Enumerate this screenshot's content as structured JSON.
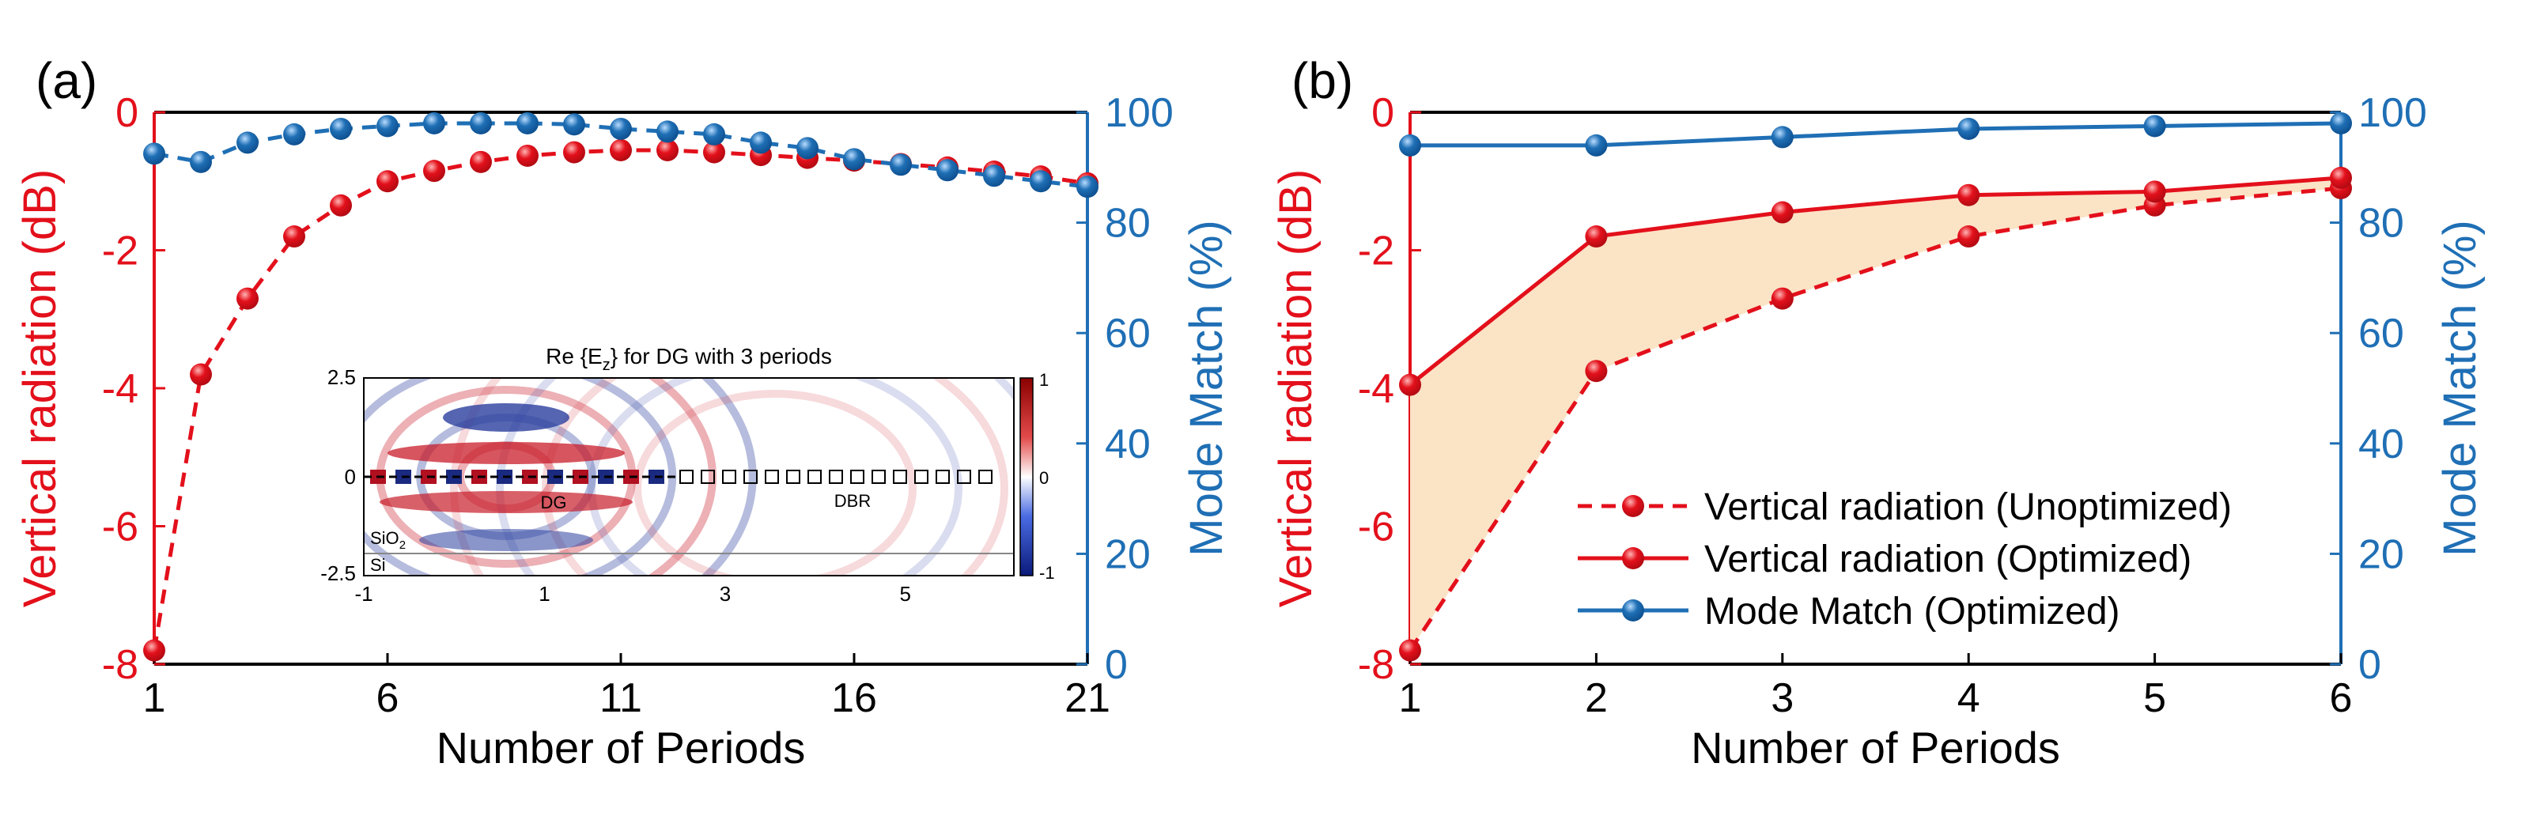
{
  "colors": {
    "red": "#e3101b",
    "blue": "#1f6fb5",
    "dark_red_ball": "#b00a12",
    "dark_blue_ball": "#0d4f8f",
    "fill": "#fbe3c6",
    "axis": "#000000"
  },
  "chart_data": [
    {
      "panel_label": "(a)",
      "type": "line",
      "xlabel": "Number of Periods",
      "ylabel_left": "Vertical radiation (dB)",
      "ylabel_right": "Mode Match (%)",
      "xlim": [
        1,
        21
      ],
      "ylim_left": [
        -8,
        0
      ],
      "ylim_right": [
        0,
        100
      ],
      "xticks": [
        1,
        6,
        11,
        16,
        21
      ],
      "yticks_left": [
        0,
        -2,
        -4,
        -6,
        -8
      ],
      "yticks_right": [
        100,
        80,
        60,
        40,
        20,
        0
      ],
      "x": [
        1,
        2,
        3,
        4,
        5,
        6,
        7,
        8,
        9,
        10,
        11,
        12,
        13,
        14,
        15,
        16,
        17,
        18,
        19,
        20,
        21
      ],
      "series": [
        {
          "name": "Vertical radiation",
          "axis": "left",
          "color": "red",
          "style": "dashed",
          "values": [
            -7.8,
            -3.8,
            -2.7,
            -1.8,
            -1.35,
            -1.0,
            -0.85,
            -0.72,
            -0.63,
            -0.58,
            -0.55,
            -0.55,
            -0.58,
            -0.62,
            -0.66,
            -0.7,
            -0.75,
            -0.8,
            -0.86,
            -0.93,
            -1.03
          ]
        },
        {
          "name": "Mode Match",
          "axis": "right",
          "color": "blue",
          "style": "dashed",
          "values": [
            92.5,
            91.0,
            94.5,
            96.0,
            97.0,
            97.5,
            98.0,
            98.0,
            98.0,
            97.8,
            97.0,
            96.5,
            96.0,
            94.5,
            93.5,
            91.5,
            90.5,
            89.5,
            88.5,
            87.5,
            86.5
          ]
        }
      ],
      "inset": {
        "title": "Re {E",
        "title_sub": "z",
        "title_rest": "} for DG with 3 periods",
        "xticks": [
          "-1",
          "1",
          "3",
          "5"
        ],
        "yticks": [
          "2.5",
          "0",
          "-2.5"
        ],
        "colorbar_ticks": [
          "1",
          "0",
          "-1"
        ],
        "labels": {
          "dg": "DG",
          "dbr": "DBR",
          "sio2": "SiO",
          "sio2_sub": "2",
          "si": "Si"
        }
      }
    },
    {
      "panel_label": "(b)",
      "type": "line",
      "xlabel": "Number of Periods",
      "ylabel_left": "Vertical radiation (dB)",
      "ylabel_right": "Mode Match (%)",
      "xlim": [
        1,
        6
      ],
      "ylim_left": [
        -8,
        0
      ],
      "ylim_right": [
        0,
        100
      ],
      "xticks": [
        1,
        2,
        3,
        4,
        5,
        6
      ],
      "yticks_left": [
        0,
        -2,
        -4,
        -6,
        -8
      ],
      "yticks_right": [
        100,
        80,
        60,
        40,
        20,
        0
      ],
      "x": [
        1,
        2,
        3,
        4,
        5,
        6
      ],
      "series": [
        {
          "name": "Vertical radiation (Unoptimized)",
          "axis": "left",
          "color": "red",
          "style": "dashed",
          "values": [
            -7.8,
            -3.75,
            -2.7,
            -1.8,
            -1.35,
            -1.1
          ]
        },
        {
          "name": "Vertical radiation (Optimized)",
          "axis": "left",
          "color": "red",
          "style": "solid",
          "values": [
            -3.95,
            -1.8,
            -1.45,
            -1.2,
            -1.15,
            -0.95
          ]
        },
        {
          "name": "Mode Match (Optimized)",
          "axis": "right",
          "color": "blue",
          "style": "solid",
          "values": [
            94.0,
            94.0,
            95.5,
            97.0,
            97.5,
            98.0
          ]
        }
      ],
      "legend": [
        "Vertical radiation (Unoptimized)",
        "Vertical radiation (Optimized)",
        "Mode Match (Optimized)"
      ]
    }
  ]
}
